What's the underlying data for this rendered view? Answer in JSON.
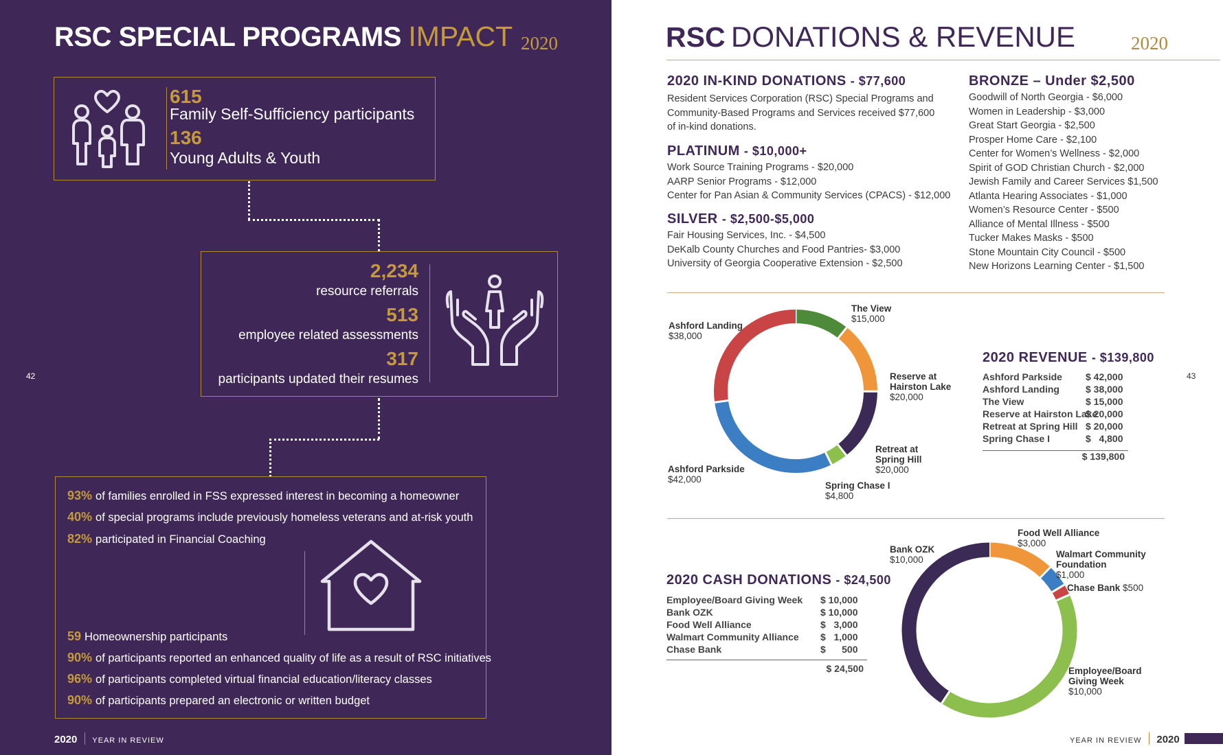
{
  "left": {
    "title_bold": "RSC SPECIAL PROGRAMS",
    "title_light": "IMPACT",
    "year": "2020",
    "page_number": "42",
    "box1": {
      "num1": "615",
      "label1": "Family Self-Sufficiency participants",
      "num2": "136",
      "label2": "Young Adults & Youth",
      "icon": "family-icon"
    },
    "box2": {
      "num1": "2,234",
      "label1": "resource referrals",
      "num2": "513",
      "label2": "employee related assessments",
      "num3": "317",
      "label3": "participants updated their resumes",
      "icon": "hands-holding-person-icon"
    },
    "box3": {
      "stats_top": [
        {
          "pct": "93%",
          "text": "of families enrolled in FSS expressed interest in becoming a homeowner"
        },
        {
          "pct": "40%",
          "text": "of special programs include previously homeless veterans and at-risk youth"
        },
        {
          "pct": "82%",
          "text": "participated in Financial Coaching"
        }
      ],
      "stats_bottom": [
        {
          "pct": "59",
          "text": "Homeownership participants"
        },
        {
          "pct": "90%",
          "text": "of participants reported an enhanced quality of life as a result of RSC initiatives"
        },
        {
          "pct": "96%",
          "text": "of participants completed virtual financial education/literacy classes"
        },
        {
          "pct": "90%",
          "text": "of participants prepared an electronic or written budget"
        }
      ],
      "icon": "house-heart-icon"
    },
    "footer_year": "2020",
    "footer_label": "YEAR IN REVIEW"
  },
  "right": {
    "title_bold": "RSC",
    "title_light": "DONATIONS & REVENUE",
    "year": "2020",
    "page_number": "43",
    "inkind": {
      "title": "2020 IN-KIND DONATIONS",
      "amount": "- $77,600",
      "lines": [
        "Resident Services Corporation (RSC) Special Programs and",
        "Community-Based Programs and Services received $77,600",
        "of in-kind donations."
      ]
    },
    "platinum": {
      "title": "PLATINUM",
      "amount": "- $10,000+",
      "items": [
        "Work Source Training Programs - $20,000",
        "AARP Senior Programs - $12,000",
        "Center for Pan Asian & Community Services (CPACS) - $12,000"
      ]
    },
    "silver": {
      "title": "SILVER",
      "amount": "- $2,500-$5,000",
      "items": [
        "Fair Housing Services, Inc. - $4,500",
        "DeKalb County Churches and Food Pantries- $3,000",
        "University of Georgia Cooperative Extension - $2,500"
      ]
    },
    "bronze": {
      "title": "BRONZE – Under $2,500",
      "items": [
        "Goodwill of North Georgia - $6,000",
        "Women in Leadership - $3,000",
        "Great Start Georgia - $2,500",
        "Prosper Home Care - $2,100",
        "Center for Women’s Wellness - $2,000",
        "Spirit of GOD Christian Church - $2,000",
        "Jewish Family and Career Services $1,500",
        "Atlanta Hearing Associates - $1,000",
        "Women’s Resource Center - $500",
        "Alliance of Mental Illness - $500",
        "Tucker Makes Masks - $500",
        "Stone Mountain City Council - $500",
        "New Horizons Learning Center - $1,500"
      ]
    },
    "revenue": {
      "title": "2020 REVENUE",
      "amount": "- $139,800",
      "rows": [
        {
          "name": "Ashford Parkside",
          "value": "$ 42,000"
        },
        {
          "name": "Ashford Landing",
          "value": "$ 38,000"
        },
        {
          "name": "The View",
          "value": "$ 15,000"
        },
        {
          "name": "Reserve at Hairston Lake",
          "value": "$ 20,000"
        },
        {
          "name": "Retreat at Spring Hill",
          "value": "$ 20,000"
        },
        {
          "name": "Spring Chase I",
          "value": "$   4,800"
        }
      ],
      "total": "$ 139,800"
    },
    "cash": {
      "title": "2020 CASH DONATIONS",
      "amount": "- $24,500",
      "rows": [
        {
          "name": "Employee/Board Giving Week",
          "value": "$ 10,000"
        },
        {
          "name": "Bank OZK",
          "value": "$ 10,000"
        },
        {
          "name": "Food Well Alliance",
          "value": "$   3,000"
        },
        {
          "name": "Walmart Community Alliance",
          "value": "$   1,000"
        },
        {
          "name": "Chase Bank",
          "value": "$      500"
        }
      ],
      "total": "$ 24,500"
    },
    "footer_year": "2020",
    "footer_label": "YEAR IN REVIEW"
  },
  "chart_data": [
    {
      "type": "pie",
      "title": "",
      "series": [
        {
          "name": "The View",
          "value": 15000,
          "label_name": "The View",
          "label_value": "$15,000",
          "color": "#4d8a3a"
        },
        {
          "name": "Reserve at Hairston Lake",
          "value": 20000,
          "label_name": "Reserve at Hairston Lake",
          "label_value": "$20,000",
          "color": "#f0963a"
        },
        {
          "name": "Retreat at Spring Hill",
          "value": 20000,
          "label_name": "Retreat at Spring Hill",
          "label_value": "$20,000",
          "color": "#3a2a55"
        },
        {
          "name": "Spring Chase I",
          "value": 4800,
          "label_name": "Spring Chase I",
          "label_value": "$4,800",
          "color": "#8cbf4e"
        },
        {
          "name": "Ashford Parkside",
          "value": 42000,
          "label_name": "Ashford Parkside",
          "label_value": "$42,000",
          "color": "#3b7ec3"
        },
        {
          "name": "Ashford Landing",
          "value": 38000,
          "label_name": "Ashford Landing",
          "label_value": "$38,000",
          "color": "#c94545"
        }
      ]
    },
    {
      "type": "pie",
      "title": "",
      "series": [
        {
          "name": "Food Well Alliance",
          "value": 3000,
          "label_name": "Food Well Alliance",
          "label_value": "$3,000",
          "color": "#f0963a"
        },
        {
          "name": "Walmart Community Foundation",
          "value": 1000,
          "label_name": "Walmart Community Foundation",
          "label_value": "$1,000",
          "color": "#3b7ec3"
        },
        {
          "name": "Chase Bank",
          "value": 500,
          "label_name": "Chase Bank",
          "label_value": "$500",
          "color": "#c94545"
        },
        {
          "name": "Employee/Board Giving Week",
          "value": 10000,
          "label_name": "Employee/Board Giving Week",
          "label_value": "$10,000",
          "color": "#8cbf4e"
        },
        {
          "name": "Bank OZK",
          "value": 10000,
          "label_name": "Bank OZK",
          "label_value": "$10,000",
          "color": "#3a2a55"
        }
      ]
    }
  ]
}
